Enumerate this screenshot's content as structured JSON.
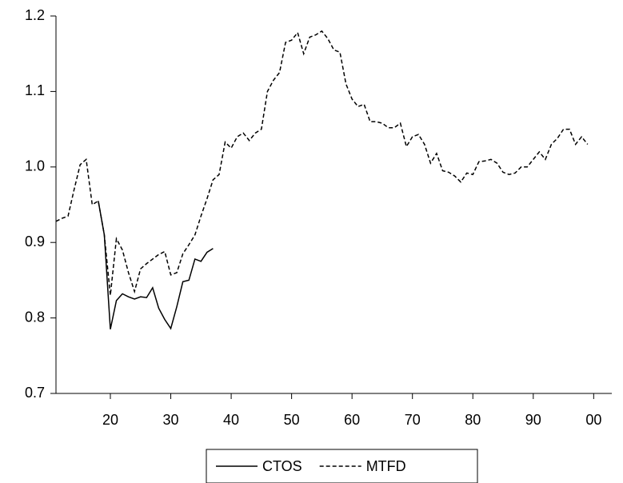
{
  "chart_data": {
    "type": "line",
    "x": [
      1911,
      1912,
      1913,
      1914,
      1915,
      1916,
      1917,
      1918,
      1919,
      1920,
      1921,
      1922,
      1923,
      1924,
      1925,
      1926,
      1927,
      1928,
      1929,
      1930,
      1931,
      1932,
      1933,
      1934,
      1935,
      1936,
      1937,
      1938,
      1939,
      1940,
      1941,
      1942,
      1943,
      1944,
      1945,
      1946,
      1947,
      1948,
      1949,
      1950,
      1951,
      1952,
      1953,
      1954,
      1955,
      1956,
      1957,
      1958,
      1959,
      1960,
      1961,
      1962,
      1963,
      1964,
      1965,
      1966,
      1967,
      1968,
      1969,
      1970,
      1971,
      1972,
      1973,
      1974,
      1975,
      1976,
      1977,
      1978,
      1979,
      1980,
      1981,
      1982,
      1983,
      1984,
      1985,
      1986,
      1987,
      1988,
      1989,
      1990,
      1991,
      1992,
      1993,
      1994,
      1995,
      1996,
      1997,
      1998,
      1999
    ],
    "series": [
      {
        "name": "CTOS",
        "color": "#000000",
        "line_style": "solid",
        "values": [
          null,
          null,
          null,
          null,
          null,
          null,
          null,
          0.955,
          0.91,
          0.785,
          0.823,
          0.832,
          0.828,
          0.825,
          0.828,
          0.827,
          0.84,
          0.813,
          0.798,
          0.786,
          0.815,
          0.848,
          0.85,
          0.878,
          0.875,
          0.887,
          0.892,
          null,
          null,
          null,
          null,
          null,
          null,
          null,
          null,
          null,
          null,
          null,
          null,
          null,
          null,
          null,
          null,
          null,
          null,
          null,
          null,
          null,
          null,
          null,
          null,
          null,
          null,
          null,
          null,
          null,
          null,
          null,
          null,
          null,
          null,
          null,
          null,
          null,
          null,
          null,
          null,
          null,
          null,
          null,
          null,
          null,
          null,
          null,
          null,
          null,
          null,
          null,
          null,
          null,
          null,
          null,
          null,
          null,
          null,
          null,
          null,
          null,
          null
        ]
      },
      {
        "name": "MTFD",
        "color": "#000000",
        "line_style": "dashed",
        "values": [
          0.928,
          0.932,
          0.935,
          0.97,
          1.003,
          1.01,
          0.95,
          0.955,
          0.91,
          0.83,
          0.905,
          0.89,
          0.86,
          0.835,
          0.865,
          0.872,
          0.878,
          0.884,
          0.888,
          0.857,
          0.86,
          0.885,
          0.897,
          0.91,
          0.935,
          0.958,
          0.983,
          0.99,
          1.033,
          1.025,
          1.04,
          1.045,
          1.035,
          1.045,
          1.05,
          1.1,
          1.115,
          1.125,
          1.165,
          1.168,
          1.178,
          1.15,
          1.172,
          1.175,
          1.18,
          1.17,
          1.155,
          1.152,
          1.11,
          1.09,
          1.08,
          1.083,
          1.06,
          1.06,
          1.058,
          1.052,
          1.052,
          1.058,
          1.027,
          1.04,
          1.043,
          1.03,
          1.005,
          1.018,
          0.995,
          0.993,
          0.988,
          0.98,
          0.992,
          0.99,
          1.007,
          1.008,
          1.01,
          1.005,
          0.993,
          0.99,
          0.992,
          1.0,
          1.0,
          1.01,
          1.02,
          1.01,
          1.03,
          1.038,
          1.05,
          1.05,
          1.03,
          1.04,
          1.03
        ]
      }
    ],
    "xlim": [
      1911,
      2003
    ],
    "xticks": [
      {
        "value": 1920,
        "label": "20"
      },
      {
        "value": 1930,
        "label": "30"
      },
      {
        "value": 1940,
        "label": "40"
      },
      {
        "value": 1950,
        "label": "50"
      },
      {
        "value": 1960,
        "label": "60"
      },
      {
        "value": 1970,
        "label": "70"
      },
      {
        "value": 1980,
        "label": "80"
      },
      {
        "value": 1990,
        "label": "90"
      },
      {
        "value": 2000,
        "label": "00"
      }
    ],
    "ylim": [
      0.7,
      1.2
    ],
    "yticks": [
      0.7,
      0.8,
      0.9,
      {
        "value": 1,
        "label": "1.0"
      },
      1.1,
      1.2
    ],
    "grid": false,
    "legend": "bottom"
  }
}
